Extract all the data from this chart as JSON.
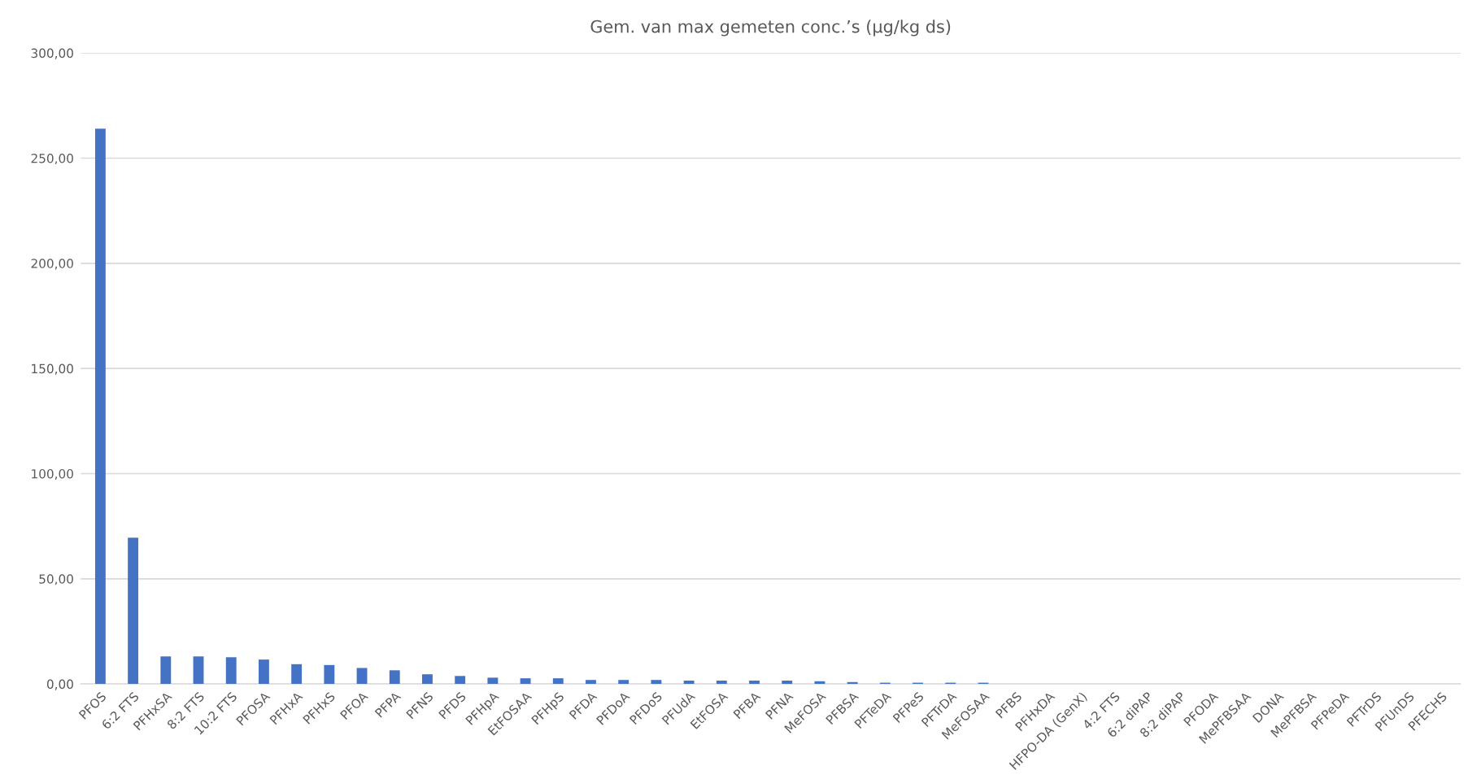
{
  "chart_data": {
    "type": "bar",
    "title": "Gem. van max gemeten conc.’s (µg/kg ds)",
    "categories": [
      "PFOS",
      "6:2 FTS",
      "PFHxSA",
      "8:2 FTS",
      "10:2 FTS",
      "PFOSA",
      "PFHxA",
      "PFHxS",
      "PFOA",
      "PFPA",
      "PFNS",
      "PFDS",
      "PFHpA",
      "EtFOSAA",
      "PFHpS",
      "PFDA",
      "PFDoA",
      "PFDoS",
      "PFUdA",
      "EtFOSA",
      "PFBA",
      "PFNA",
      "MeFOSA",
      "PFBSA",
      "PFTeDA",
      "PFPeS",
      "PFTrDA",
      "MeFOSAA",
      "PFBS",
      "PFHxDA",
      "HFPO-DA (GenX)",
      "4:2 FTS",
      "6:2 diPAP",
      "8:2 diPAP",
      "PFODA",
      "MePFBSAA",
      "DONA",
      "MePFBSA",
      "PFPeDA",
      "PFTrDS",
      "PFUnDS",
      "PFECHS"
    ],
    "values": [
      264,
      69.5,
      13.1,
      13.1,
      12.7,
      11.6,
      9.4,
      9.0,
      7.6,
      6.5,
      4.6,
      3.8,
      3.0,
      2.7,
      2.7,
      1.9,
      1.9,
      1.9,
      1.6,
      1.6,
      1.6,
      1.6,
      1.3,
      0.9,
      0.6,
      0.6,
      0.6,
      0.6,
      0,
      0,
      0,
      0,
      0,
      0,
      0,
      0,
      0,
      0,
      0,
      0,
      0,
      0
    ],
    "color": "#4472c4",
    "ylim": [
      0,
      300
    ],
    "yticks": [
      {
        "value": 0,
        "label": "0,00"
      },
      {
        "value": 50,
        "label": "50,00"
      },
      {
        "value": 100,
        "label": "100,00"
      },
      {
        "value": 150,
        "label": "150,00"
      },
      {
        "value": 200,
        "label": "200,00"
      },
      {
        "value": 250,
        "label": "250,00"
      },
      {
        "value": 300,
        "label": "300,00"
      }
    ],
    "grid": "y",
    "legend": false
  }
}
